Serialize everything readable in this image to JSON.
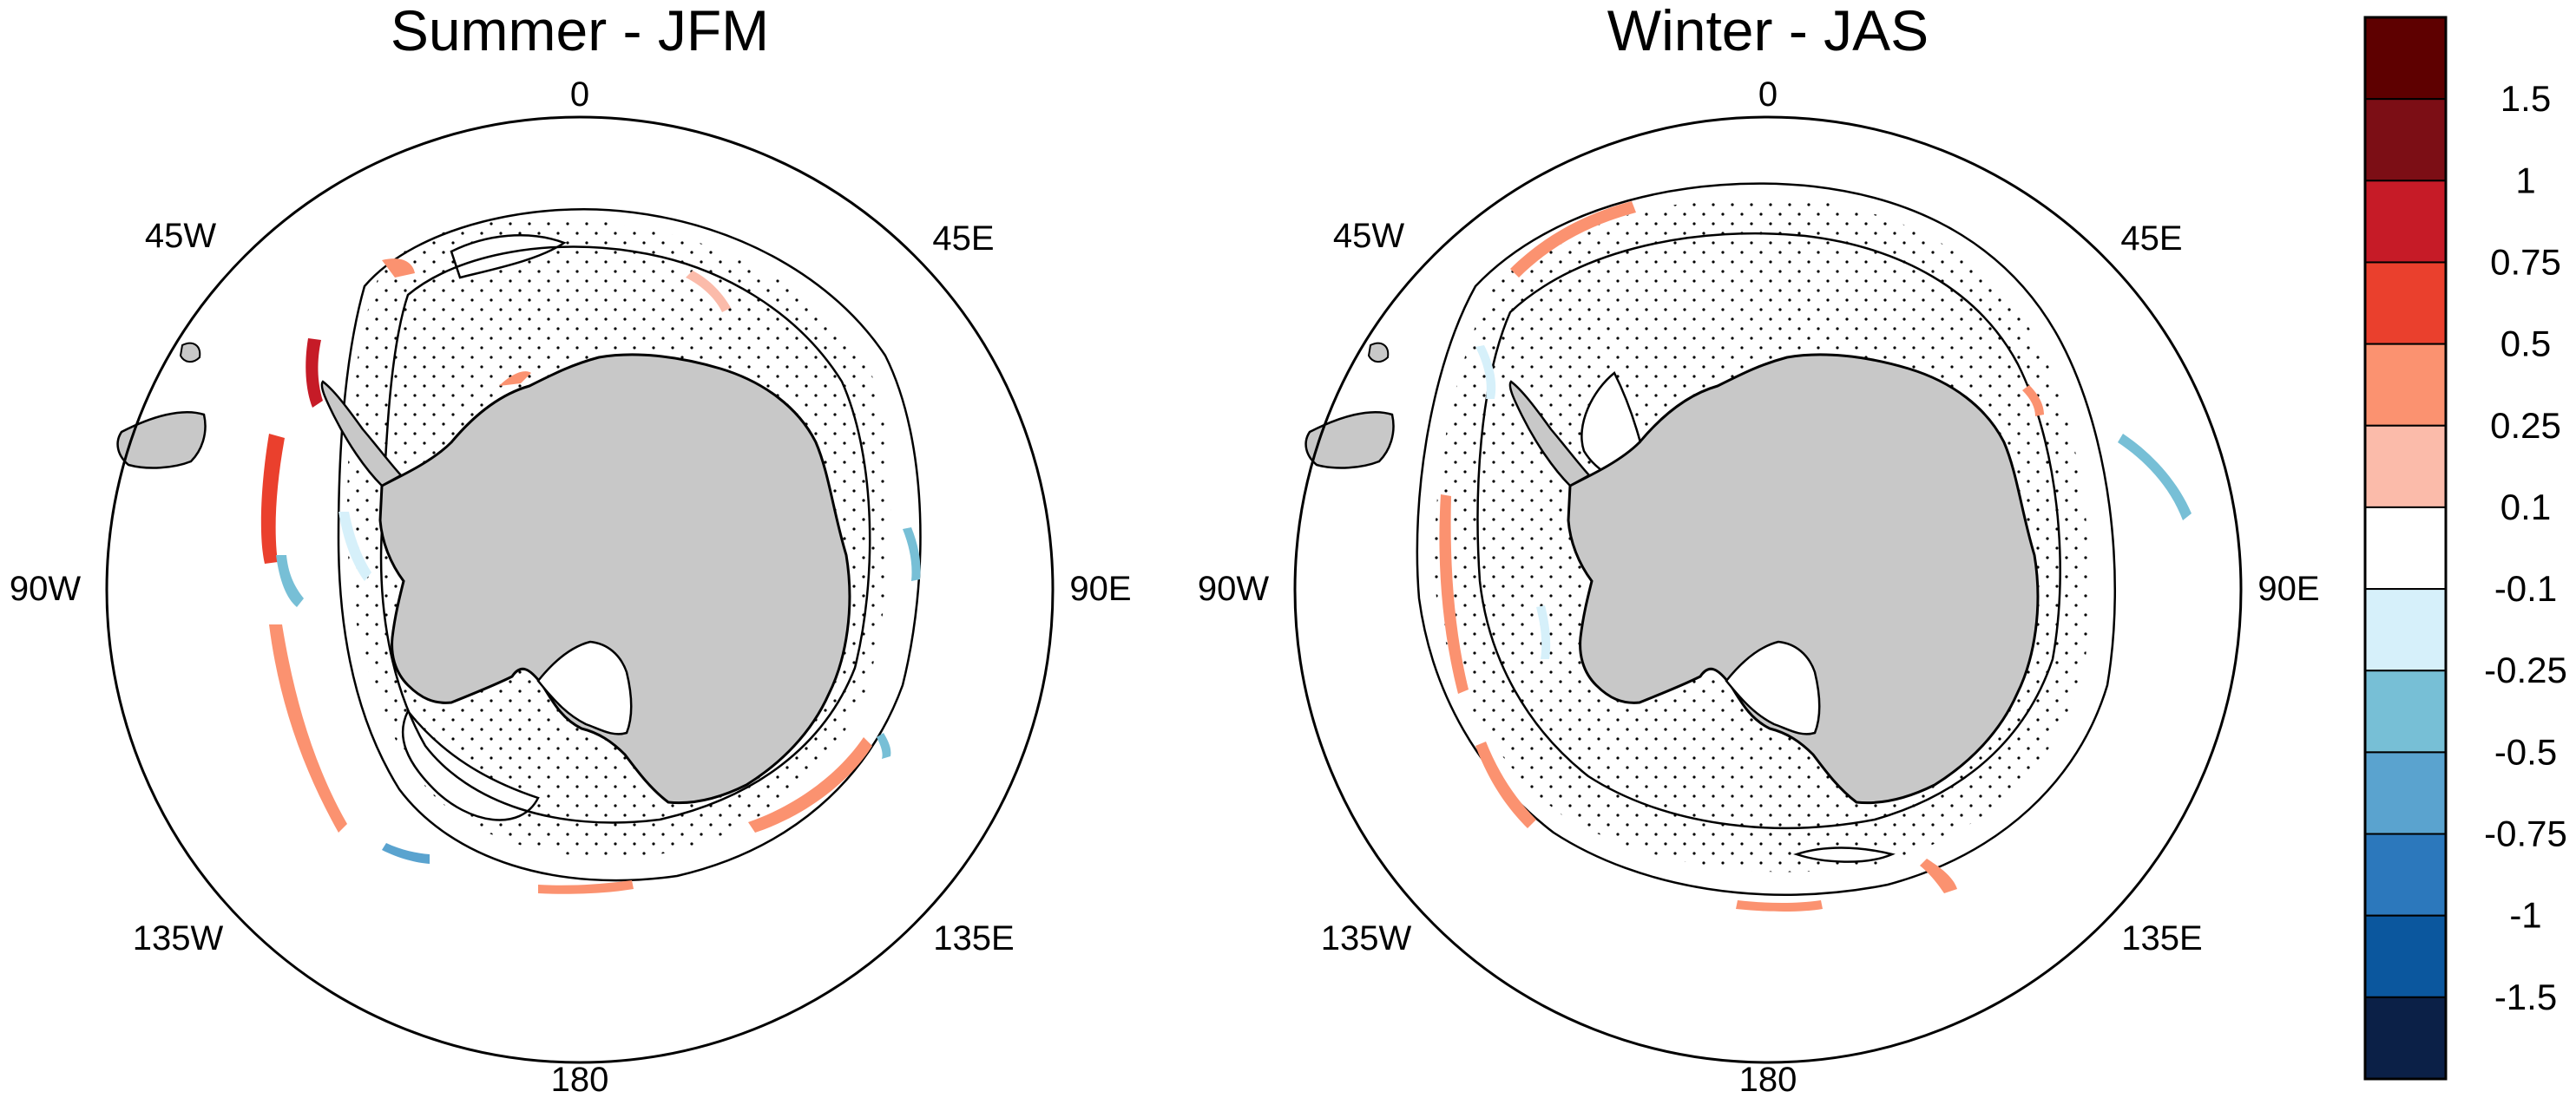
{
  "panels": [
    {
      "title": "Summer - JFM",
      "lon_labels": {
        "n": "0",
        "ne": "45E",
        "e": "90E",
        "se": "135E",
        "s": "180",
        "sw": "135W",
        "w": "90W",
        "nw": "45W"
      }
    },
    {
      "title": "Winter - JAS",
      "lon_labels": {
        "n": "0",
        "ne": "45E",
        "e": "90E",
        "se": "135E",
        "s": "180",
        "sw": "135W",
        "w": "90W",
        "nw": "45W"
      }
    }
  ],
  "colorbar": {
    "labels": [
      "1.5",
      "1",
      "0.75",
      "0.5",
      "0.25",
      "0.1",
      "-0.1",
      "-0.25",
      "-0.5",
      "-0.75",
      "-1",
      "-1.5"
    ],
    "colors": [
      "#5e0000",
      "#7c0e15",
      "#c61b27",
      "#ea402d",
      "#fb9270",
      "#fbbbaa",
      "#ffffff",
      "#d6f0fa",
      "#77bfd6",
      "#5aa3cf",
      "#2c78bc",
      "#0b579e",
      "#0b2047"
    ]
  },
  "map_colors": {
    "land": "#c8c8c8",
    "ice_shelf": "#ffffff",
    "frame": "#000000"
  }
}
